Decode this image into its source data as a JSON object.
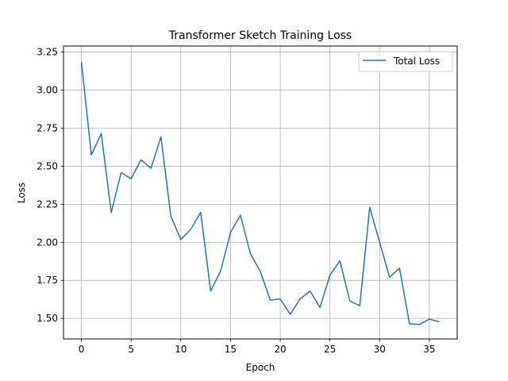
{
  "chart_data": {
    "type": "line",
    "title": "Transformer Sketch Training Loss",
    "xlabel": "Epoch",
    "ylabel": "Loss",
    "xlim": [
      -1.8,
      37.8
    ],
    "ylim": [
      1.365,
      3.29
    ],
    "grid": true,
    "legend_position": "top-right",
    "x_ticks": [
      0,
      5,
      10,
      15,
      20,
      25,
      30,
      35
    ],
    "y_ticks": [
      1.5,
      1.75,
      2.0,
      2.25,
      2.5,
      2.75,
      3.0,
      3.25
    ],
    "y_tick_labels": [
      "1.50",
      "1.75",
      "2.00",
      "2.25",
      "2.50",
      "2.75",
      "3.00",
      "3.25"
    ],
    "series": [
      {
        "name": "Total Loss",
        "color": "#1f77b4",
        "x": [
          0,
          1,
          2,
          3,
          4,
          5,
          6,
          7,
          8,
          9,
          10,
          11,
          12,
          13,
          14,
          15,
          16,
          17,
          18,
          19,
          20,
          21,
          22,
          23,
          24,
          25,
          26,
          27,
          28,
          29,
          30,
          31,
          32,
          33,
          34,
          35,
          36
        ],
        "values": [
          3.185,
          2.575,
          2.715,
          2.195,
          2.458,
          2.418,
          2.542,
          2.487,
          2.693,
          2.172,
          2.018,
          2.085,
          2.197,
          1.68,
          1.81,
          2.065,
          2.178,
          1.925,
          1.808,
          1.62,
          1.628,
          1.527,
          1.628,
          1.68,
          1.572,
          1.785,
          1.878,
          1.615,
          1.583,
          2.23,
          2.0,
          1.77,
          1.83,
          1.465,
          1.46,
          1.495,
          1.478
        ]
      }
    ]
  }
}
